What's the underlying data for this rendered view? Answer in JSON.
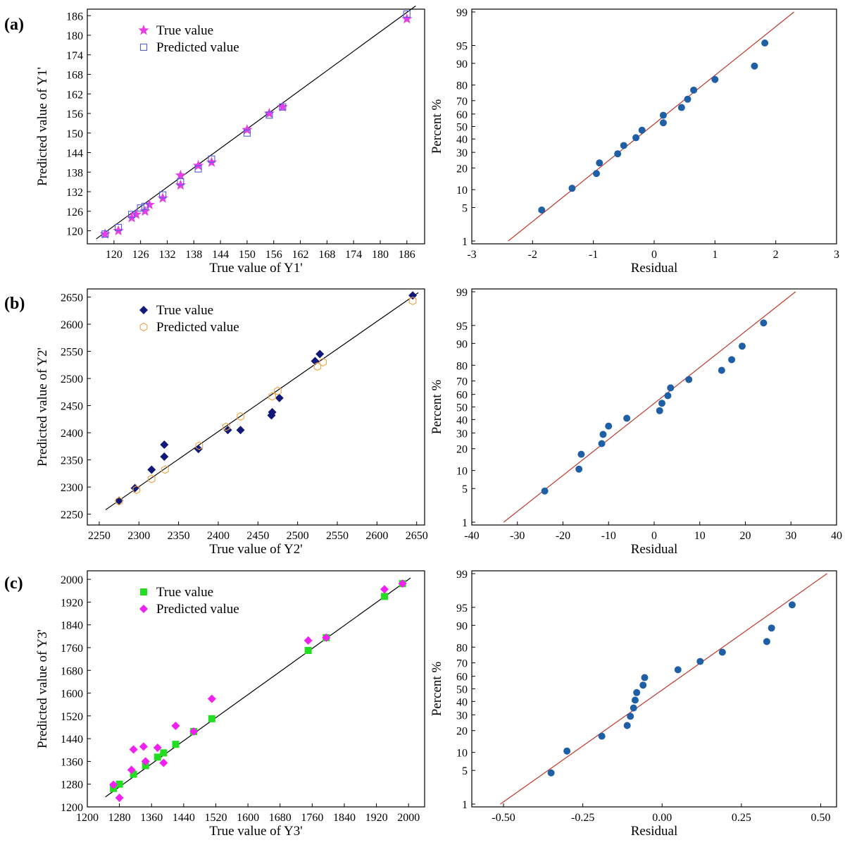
{
  "panel_labels": [
    "(a)",
    "(b)",
    "(c)"
  ],
  "colors": {
    "axis": "#000000",
    "fit_line": "#000000",
    "normal_line": "#c0392b",
    "residual_dot": "#1f5fa6",
    "a_true": "#e63ee6",
    "a_pred": "#4f5fe0",
    "b_true": "#10187a",
    "b_pred": "#f0a040",
    "c_true": "#22dd22",
    "c_pred": "#f020f0"
  },
  "chart_data": [
    {
      "id": "a-pred-vs-true",
      "type": "scatter",
      "xlabel": "True value of Y1'",
      "ylabel": "Predicted value of Y1'",
      "xlim": [
        114,
        190
      ],
      "ylim": [
        116,
        188
      ],
      "xticks": [
        "120",
        "126",
        "132",
        "138",
        "144",
        "150",
        "156",
        "162",
        "168",
        "174",
        "180",
        "186"
      ],
      "yticks": [
        "120",
        "126",
        "132",
        "138",
        "144",
        "150",
        "156",
        "162",
        "168",
        "174",
        "180",
        "186"
      ],
      "legend": [
        "True value",
        "Predicted value"
      ],
      "fit_line": [
        [
          116,
          117.5
        ],
        [
          188,
          189
        ]
      ],
      "series": [
        {
          "name": "True value",
          "marker": "star",
          "points": [
            [
              118,
              119
            ],
            [
              121,
              120
            ],
            [
              124,
              124
            ],
            [
              125,
              125
            ],
            [
              127,
              126
            ],
            [
              128,
              128
            ],
            [
              131,
              130
            ],
            [
              135,
              134
            ],
            [
              135,
              137
            ],
            [
              139,
              140
            ],
            [
              142,
              141
            ],
            [
              150,
              151
            ],
            [
              155,
              156
            ],
            [
              158,
              158
            ],
            [
              186,
              185
            ]
          ]
        },
        {
          "name": "Predicted value",
          "marker": "square-open",
          "points": [
            [
              118,
              119
            ],
            [
              121,
              121
            ],
            [
              124,
              125
            ],
            [
              126,
              127
            ],
            [
              127,
              127.5
            ],
            [
              131,
              131
            ],
            [
              135,
              135
            ],
            [
              139,
              139
            ],
            [
              142,
              142
            ],
            [
              150,
              150
            ],
            [
              155,
              155.5
            ],
            [
              158,
              158
            ],
            [
              186,
              186.5
            ]
          ]
        }
      ]
    },
    {
      "id": "a-residual-normal",
      "type": "scatter",
      "xlabel": "Residual",
      "ylabel": "Percent %",
      "xlim": [
        -3,
        3
      ],
      "xticks": [
        "-3",
        "-2",
        "-1",
        "0",
        "1",
        "2",
        "3"
      ],
      "yticks": [
        "1",
        "5",
        "10",
        "20",
        "30",
        "40",
        "50",
        "60",
        "70",
        "80",
        "90",
        "95",
        "99"
      ],
      "line": [
        [
          -2.4,
          1
        ],
        [
          2.3,
          99
        ]
      ],
      "points": [
        [
          -1.85,
          4.5
        ],
        [
          -1.35,
          10.5
        ],
        [
          -0.95,
          17
        ],
        [
          -0.9,
          23
        ],
        [
          -0.6,
          29
        ],
        [
          -0.5,
          35
        ],
        [
          -0.3,
          41
        ],
        [
          -0.2,
          47
        ],
        [
          0.15,
          53
        ],
        [
          0.15,
          59
        ],
        [
          0.45,
          65
        ],
        [
          0.55,
          71
        ],
        [
          0.65,
          77
        ],
        [
          1.0,
          83
        ],
        [
          1.65,
          89
        ],
        [
          1.82,
          95.5
        ]
      ]
    },
    {
      "id": "b-pred-vs-true",
      "type": "scatter",
      "xlabel": "True value of Y2'",
      "ylabel": "Predicted value of Y2'",
      "xlim": [
        2235,
        2660
      ],
      "ylim": [
        2230,
        2665
      ],
      "xticks": [
        "2250",
        "2300",
        "2350",
        "2400",
        "2450",
        "2500",
        "2550",
        "2600",
        "2650"
      ],
      "yticks": [
        "2250",
        "2300",
        "2350",
        "2400",
        "2450",
        "2500",
        "2550",
        "2600",
        "2650"
      ],
      "legend": [
        "True value",
        "Predicted value"
      ],
      "fit_line": [
        [
          2258,
          2258
        ],
        [
          2652,
          2658
        ]
      ],
      "series": [
        {
          "name": "True value",
          "marker": "diamond",
          "points": [
            [
              2275,
              2275
            ],
            [
              2295,
              2298
            ],
            [
              2316,
              2332
            ],
            [
              2332,
              2356
            ],
            [
              2332,
              2378
            ],
            [
              2375,
              2370
            ],
            [
              2412,
              2405
            ],
            [
              2428,
              2405
            ],
            [
              2467,
              2432
            ],
            [
              2468,
              2438
            ],
            [
              2477,
              2464
            ],
            [
              2522,
              2532
            ],
            [
              2528,
              2545
            ],
            [
              2645,
              2653
            ]
          ]
        },
        {
          "name": "Predicted value",
          "marker": "hexagon-open",
          "points": [
            [
              2275,
              2274
            ],
            [
              2297,
              2295
            ],
            [
              2316,
              2315
            ],
            [
              2333,
              2332
            ],
            [
              2376,
              2376
            ],
            [
              2410,
              2411
            ],
            [
              2428,
              2430
            ],
            [
              2468,
              2467
            ],
            [
              2475,
              2477
            ],
            [
              2525,
              2522
            ],
            [
              2532,
              2530
            ],
            [
              2645,
              2643
            ]
          ]
        }
      ]
    },
    {
      "id": "b-residual-normal",
      "type": "scatter",
      "xlabel": "Residual",
      "ylabel": "Percent %",
      "xlim": [
        -40,
        40
      ],
      "xticks": [
        "-40",
        "-30",
        "-20",
        "-10",
        "0",
        "10",
        "20",
        "30",
        "40"
      ],
      "yticks": [
        "1",
        "5",
        "10",
        "20",
        "30",
        "40",
        "50",
        "60",
        "70",
        "80",
        "90",
        "95",
        "99"
      ],
      "line": [
        [
          -33,
          1
        ],
        [
          31,
          99
        ]
      ],
      "points": [
        [
          -24,
          4.5
        ],
        [
          -16.5,
          10.5
        ],
        [
          -16,
          17
        ],
        [
          -11.5,
          23
        ],
        [
          -11.2,
          29
        ],
        [
          -10,
          35
        ],
        [
          -6,
          41
        ],
        [
          1.2,
          47
        ],
        [
          1.7,
          53
        ],
        [
          3,
          59
        ],
        [
          3.6,
          65
        ],
        [
          7.6,
          71
        ],
        [
          14.8,
          77
        ],
        [
          17,
          83
        ],
        [
          19.3,
          89
        ],
        [
          24,
          95.5
        ]
      ]
    },
    {
      "id": "c-pred-vs-true",
      "type": "scatter",
      "xlabel": "True value of Y3'",
      "ylabel": "Predicted value of Y3'",
      "xlim": [
        1200,
        2040
      ],
      "ylim": [
        1200,
        2030
      ],
      "xticks": [
        "1200",
        "1280",
        "1360",
        "1440",
        "1520",
        "1600",
        "1680",
        "1760",
        "1840",
        "1920",
        "2000"
      ],
      "yticks": [
        "1200",
        "1280",
        "1360",
        "1440",
        "1520",
        "1600",
        "1680",
        "1760",
        "1840",
        "1920",
        "2000"
      ],
      "legend": [
        "True value",
        "Predicted value"
      ],
      "fit_line": [
        [
          1245,
          1235
        ],
        [
          2005,
          2005
        ]
      ],
      "series": [
        {
          "name": "True value",
          "marker": "square",
          "points": [
            [
              1265,
              1265
            ],
            [
              1280,
              1280
            ],
            [
              1315,
              1315
            ],
            [
              1345,
              1345
            ],
            [
              1375,
              1375
            ],
            [
              1390,
              1390
            ],
            [
              1420,
              1420
            ],
            [
              1465,
              1465
            ],
            [
              1510,
              1510
            ],
            [
              1750,
              1750
            ],
            [
              1795,
              1795
            ],
            [
              1940,
              1940
            ],
            [
              1985,
              1985
            ]
          ]
        },
        {
          "name": "Predicted value",
          "marker": "diamond",
          "points": [
            [
              1265,
              1278
            ],
            [
              1280,
              1232
            ],
            [
              1310,
              1330
            ],
            [
              1315,
              1402
            ],
            [
              1340,
              1412
            ],
            [
              1345,
              1360
            ],
            [
              1375,
              1408
            ],
            [
              1390,
              1355
            ],
            [
              1420,
              1485
            ],
            [
              1465,
              1465
            ],
            [
              1510,
              1580
            ],
            [
              1750,
              1785
            ],
            [
              1795,
              1795
            ],
            [
              1940,
              1965
            ],
            [
              1985,
              1985
            ]
          ]
        }
      ]
    },
    {
      "id": "c-residual-normal",
      "type": "scatter",
      "xlabel": "Residual",
      "ylabel": "Percent %",
      "xlim": [
        -0.6,
        0.55
      ],
      "xticks": [
        "-0.50",
        "-0.25",
        "0.00",
        "0.25",
        "0.50"
      ],
      "yticks": [
        "1",
        "5",
        "10",
        "20",
        "30",
        "40",
        "50",
        "60",
        "70",
        "80",
        "90",
        "95",
        "99"
      ],
      "line": [
        [
          -0.51,
          1
        ],
        [
          0.52,
          99
        ]
      ],
      "points": [
        [
          -0.35,
          4.5
        ],
        [
          -0.3,
          10.5
        ],
        [
          -0.19,
          17
        ],
        [
          -0.11,
          23
        ],
        [
          -0.1,
          29
        ],
        [
          -0.09,
          35
        ],
        [
          -0.085,
          41
        ],
        [
          -0.08,
          47
        ],
        [
          -0.06,
          53
        ],
        [
          -0.055,
          59
        ],
        [
          0.05,
          65
        ],
        [
          0.12,
          71
        ],
        [
          0.19,
          77
        ],
        [
          0.33,
          83
        ],
        [
          0.345,
          89
        ],
        [
          0.41,
          95.5
        ]
      ]
    }
  ]
}
